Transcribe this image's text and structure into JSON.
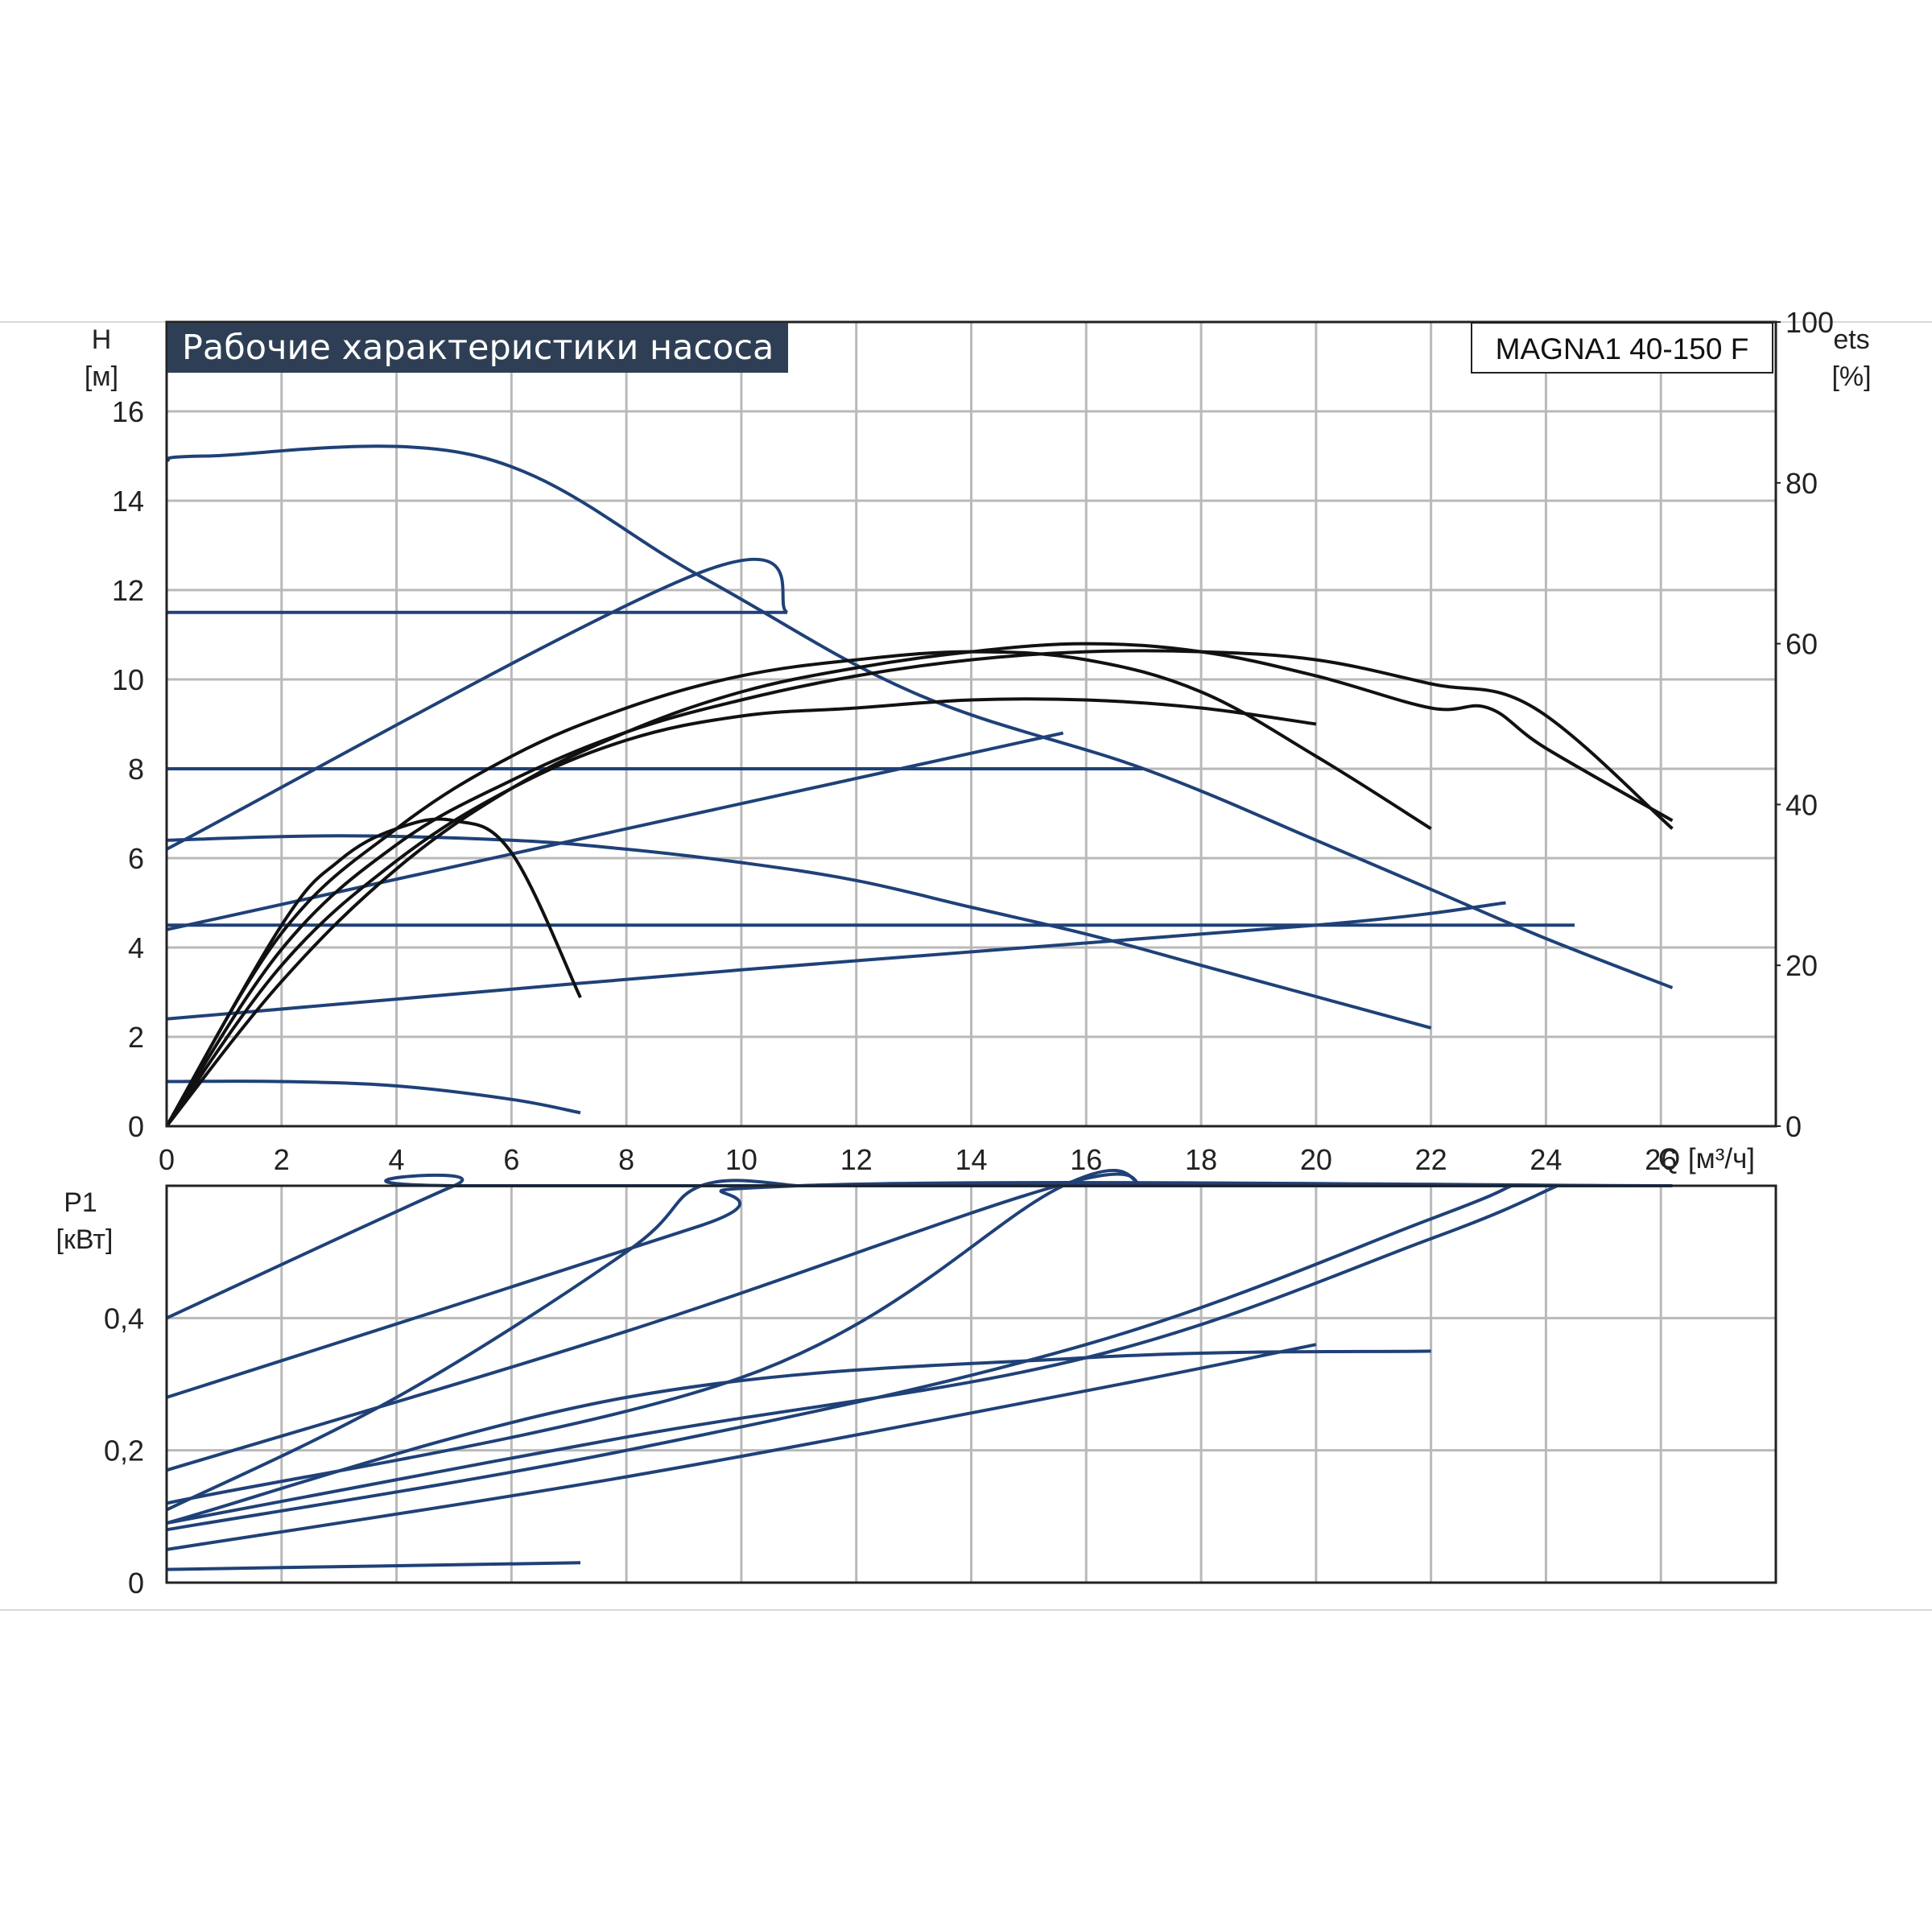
{
  "title": "Рабочие характеристики насоса",
  "model": "MAGNA1 40-150 F",
  "axes": {
    "head_symbol": "H",
    "head_unit": "[м]",
    "eff_symbol": "ets",
    "eff_unit": "[%]",
    "power_symbol": "P1",
    "power_unit": "[кВт]",
    "flow_label": "Q [м³/ч]"
  },
  "colors": {
    "performance": "#1f4178",
    "efficiency": "#111111",
    "grid": "#b9b9b9"
  },
  "chart_data": [
    {
      "type": "line",
      "panel": "head-efficiency",
      "xlim": [
        0,
        28
      ],
      "ylim": [
        0,
        18
      ],
      "y2lim": [
        0,
        100
      ],
      "x_ticks": [
        0,
        2,
        4,
        6,
        8,
        10,
        12,
        14,
        16,
        18,
        20,
        22,
        24,
        26
      ],
      "x_tick_labels": [
        "0",
        "2",
        "4",
        "6",
        "8",
        "10",
        "12",
        "14",
        "16",
        "18",
        "20",
        "22",
        "24",
        "26"
      ],
      "y_ticks": [
        0,
        2,
        4,
        6,
        8,
        10,
        12,
        14,
        16
      ],
      "y2_ticks": [
        0,
        20,
        40,
        60,
        80,
        100
      ],
      "grid": true,
      "head_curves": [
        {
          "x": [
            0,
            0.7,
            5.4,
            9.3,
            13,
            17,
            20,
            22,
            24,
            26.2
          ],
          "y": [
            14.9,
            15,
            15,
            12.3,
            9.7,
            8,
            6.4,
            5.3,
            4.2,
            3.1
          ]
        },
        {
          "x": [
            0,
            9.3,
            10.8
          ],
          "y": [
            6.2,
            12.4,
            11.5
          ]
        },
        {
          "x": [
            0,
            10.8
          ],
          "y": [
            11.5,
            11.5
          ]
        },
        {
          "x": [
            0,
            17
          ],
          "y": [
            8,
            8
          ]
        },
        {
          "x": [
            0,
            15.6
          ],
          "y": [
            4.4,
            8.8
          ]
        },
        {
          "x": [
            0,
            3,
            6,
            8,
            10,
            12,
            14,
            16,
            18,
            20,
            22
          ],
          "y": [
            6.4,
            6.5,
            6.4,
            6.2,
            5.9,
            5.5,
            4.9,
            4.3,
            3.6,
            2.9,
            2.2
          ]
        },
        {
          "x": [
            0,
            24.5
          ],
          "y": [
            4.5,
            4.5
          ]
        },
        {
          "x": [
            0,
            10,
            20,
            23.3
          ],
          "y": [
            2.4,
            3.5,
            4.5,
            5
          ]
        },
        {
          "x": [
            0,
            2,
            4,
            6,
            7.2
          ],
          "y": [
            1,
            1,
            0.9,
            0.6,
            0.3
          ]
        }
      ],
      "efficiency_curves": [
        {
          "x": [
            0,
            2,
            4,
            6,
            8,
            10,
            12,
            14,
            16,
            18,
            20,
            22,
            23.8,
            26.2
          ],
          "y": [
            0,
            22,
            35,
            43,
            49,
            53,
            56,
            58,
            59,
            59,
            58,
            55,
            52,
            37
          ]
        },
        {
          "x": [
            0,
            2,
            4,
            6,
            8,
            10,
            12,
            14,
            16,
            18,
            20,
            22,
            23,
            24,
            26.2
          ],
          "y": [
            0,
            18,
            32,
            42,
            49,
            54,
            57,
            59,
            60,
            59,
            56,
            52,
            52,
            47,
            38
          ]
        },
        {
          "x": [
            0,
            2,
            4,
            6,
            8,
            10,
            12,
            14,
            16,
            18,
            20,
            22
          ],
          "y": [
            0,
            24,
            37,
            46,
            52,
            56,
            58,
            59,
            58,
            54,
            46,
            37
          ]
        },
        {
          "x": [
            0,
            2,
            4,
            6,
            8,
            10,
            12,
            14,
            16,
            18,
            20
          ],
          "y": [
            0,
            20,
            33,
            42,
            48,
            51,
            52,
            53,
            53,
            52,
            50
          ]
        },
        {
          "x": [
            0,
            2,
            3,
            4,
            5,
            6,
            7.2
          ],
          "y": [
            0,
            25,
            33,
            37,
            38,
            34,
            16
          ]
        }
      ]
    },
    {
      "type": "line",
      "panel": "power",
      "xlim": [
        0,
        28
      ],
      "ylim": [
        0,
        0.6
      ],
      "y_ticks": [
        0,
        0.2,
        0.4
      ],
      "y_tick_labels": [
        "0",
        "0,2",
        "0,4"
      ],
      "grid": true,
      "power_curves": [
        {
          "x": [
            0,
            5,
            5.4,
            26.2
          ],
          "y": [
            0.4,
            0.6,
            0.6,
            0.6
          ]
        },
        {
          "x": [
            0,
            9.3,
            11,
            26.2
          ],
          "y": [
            0.28,
            0.54,
            0.6,
            0.6
          ]
        },
        {
          "x": [
            0,
            4,
            8,
            9.3,
            11
          ],
          "y": [
            0.11,
            0.28,
            0.5,
            0.6,
            0.6
          ]
        },
        {
          "x": [
            0,
            8,
            15.5,
            17
          ],
          "y": [
            0.17,
            0.38,
            0.6,
            0.6
          ]
        },
        {
          "x": [
            0,
            10,
            15.6,
            17
          ],
          "y": [
            0.12,
            0.31,
            0.6,
            0.6
          ]
        },
        {
          "x": [
            0,
            8,
            16,
            22,
            24.2
          ],
          "y": [
            0.09,
            0.22,
            0.34,
            0.52,
            0.6
          ]
        },
        {
          "x": [
            0,
            8,
            16,
            22,
            23.4
          ],
          "y": [
            0.08,
            0.2,
            0.36,
            0.55,
            0.6
          ]
        },
        {
          "x": [
            0,
            8,
            16,
            22
          ],
          "y": [
            0.09,
            0.28,
            0.34,
            0.35
          ]
        },
        {
          "x": [
            0,
            8,
            16,
            20
          ],
          "y": [
            0.05,
            0.16,
            0.29,
            0.36
          ]
        },
        {
          "x": [
            0,
            7.2
          ],
          "y": [
            0.02,
            0.03
          ]
        }
      ]
    }
  ]
}
